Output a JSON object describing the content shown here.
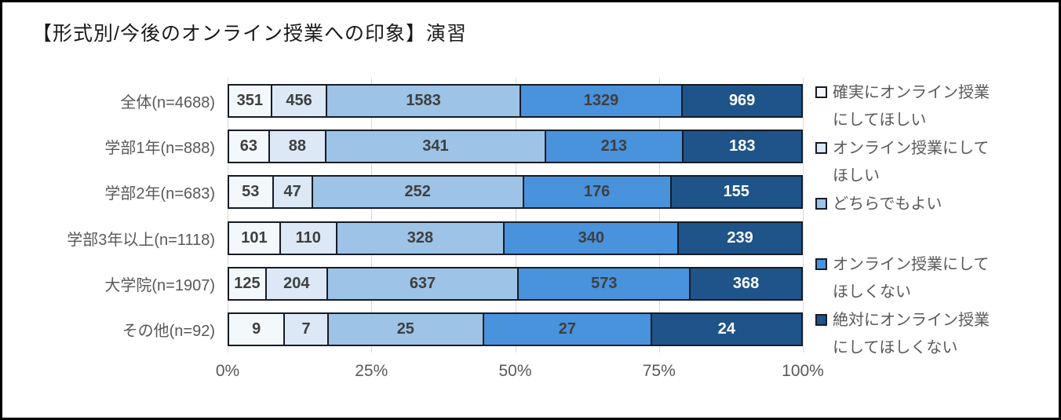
{
  "title": "【形式別/今後のオンライン授業への印象】演習",
  "colors": {
    "grid": "#d9d9d9",
    "segment_border": "#161b26",
    "category_text": "#595959",
    "axis_text": "#595959",
    "legend_text": "#595959"
  },
  "chart_data": {
    "type": "bar",
    "subtype": "100%-stacked-horizontal",
    "title": "【形式別/今後のオンライン授業への印象】演習",
    "categories": [
      "全体(n=4688)",
      "学部1年(n=888)",
      "学部2年(n=683)",
      "学部3年以上(n=1118)",
      "大学院(n=1907)",
      "その他(n=92)"
    ],
    "row_totals": [
      4688,
      888,
      683,
      1118,
      1907,
      92
    ],
    "series": [
      {
        "name": "確実にオンライン授業にしてほしい",
        "legend_lines": [
          "確実にオンライン授業",
          "にしてほしい"
        ],
        "color": "#F3F8FC",
        "text_color": "#3f3f3f",
        "values": [
          351,
          63,
          53,
          101,
          125,
          9
        ]
      },
      {
        "name": "オンライン授業にしてほしい",
        "legend_lines": [
          "オンライン授業にして",
          "ほしい"
        ],
        "color": "#DCE8F6",
        "text_color": "#3f3f3f",
        "values": [
          456,
          88,
          47,
          110,
          204,
          7
        ]
      },
      {
        "name": "どちらでもよい",
        "legend_lines": [
          "どちらでもよい"
        ],
        "color": "#9DC3E6",
        "text_color": "#3f3f3f",
        "values": [
          1583,
          341,
          252,
          328,
          637,
          25
        ]
      },
      {
        "name": "オンライン授業にしてほしくない",
        "legend_lines": [
          "オンライン授業にして",
          "ほしくない"
        ],
        "color": "#4992DC",
        "text_color": "#3f3f3f",
        "values": [
          1329,
          213,
          176,
          340,
          573,
          27
        ]
      },
      {
        "name": "絶対にオンライン授業にしてほしくない",
        "legend_lines": [
          "絶対にオンライン授業",
          "にしてほしくない"
        ],
        "color": "#1E5489",
        "text_color": "#ffffff",
        "values": [
          969,
          183,
          155,
          239,
          368,
          24
        ]
      }
    ],
    "x_ticks": [
      "0%",
      "25%",
      "50%",
      "75%",
      "100%"
    ],
    "xlim": [
      0,
      100
    ],
    "grid": true,
    "legend_position": "right"
  }
}
